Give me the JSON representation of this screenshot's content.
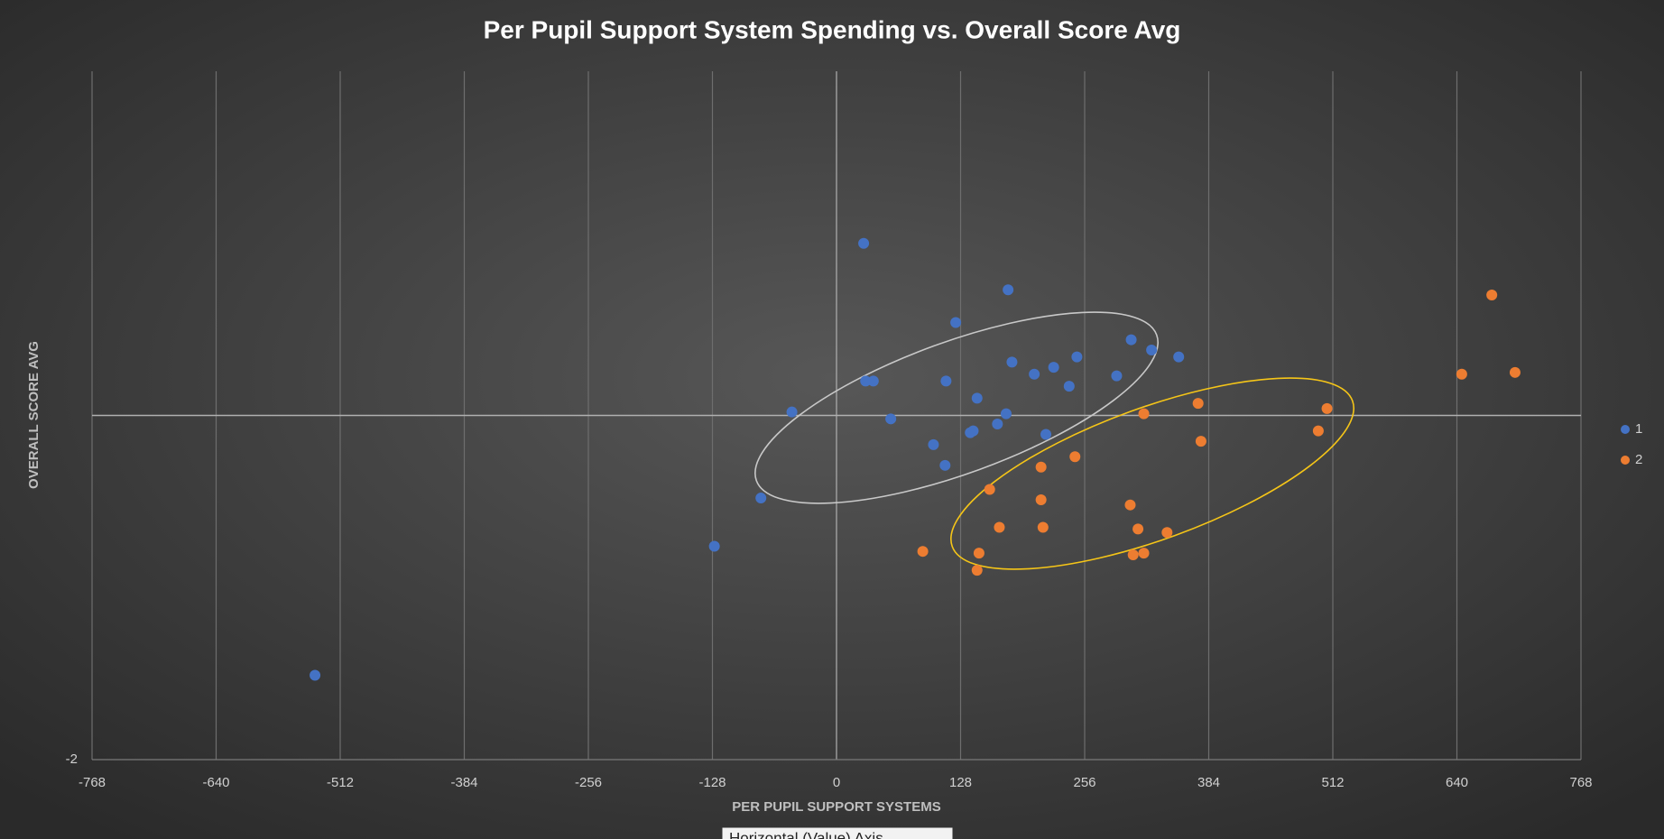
{
  "chart_data": {
    "type": "scatter",
    "title": "Per Pupil Support System Spending vs. Overall Score Avg",
    "x_label": "PER PUPIL SUPPORT SYSTEMS",
    "y_label": "OVERALL SCORE AVG",
    "tooltip": "Horizontal (Value) Axis",
    "xlim": [
      -768,
      768
    ],
    "xticks": [
      -768,
      -640,
      -512,
      -384,
      -256,
      -128,
      0,
      128,
      256,
      384,
      512,
      640,
      768
    ],
    "ylim": [
      -2,
      2
    ],
    "yticks": [
      -2
    ],
    "grid": true,
    "legend": "right",
    "series": [
      {
        "name": "1",
        "color": "#4472c4",
        "x": [
          28,
          177,
          123,
          304,
          325,
          353,
          248,
          181,
          224,
          204,
          289,
          30,
          38,
          113,
          240,
          145,
          -46,
          175,
          56,
          166,
          141,
          138,
          216,
          100,
          112,
          -78,
          -126,
          -538
        ],
        "values": [
          1.0,
          0.73,
          0.54,
          0.44,
          0.38,
          0.34,
          0.34,
          0.31,
          0.28,
          0.24,
          0.23,
          0.2,
          0.2,
          0.2,
          0.17,
          0.1,
          0.02,
          0.01,
          -0.02,
          -0.05,
          -0.09,
          -0.1,
          -0.11,
          -0.17,
          -0.29,
          -0.48,
          -0.76,
          -1.51
        ]
      },
      {
        "name": "2",
        "color": "#ed7d31",
        "x": [
          676,
          645,
          700,
          373,
          506,
          317,
          497,
          376,
          246,
          211,
          158,
          211,
          303,
          168,
          213,
          311,
          341,
          89,
          147,
          306,
          317,
          145
        ],
        "values": [
          0.7,
          0.24,
          0.25,
          0.07,
          0.04,
          0.01,
          -0.09,
          -0.15,
          -0.24,
          -0.3,
          -0.43,
          -0.49,
          -0.52,
          -0.65,
          -0.65,
          -0.66,
          -0.68,
          -0.79,
          -0.8,
          -0.81,
          -0.8,
          -0.9
        ]
      }
    ]
  }
}
